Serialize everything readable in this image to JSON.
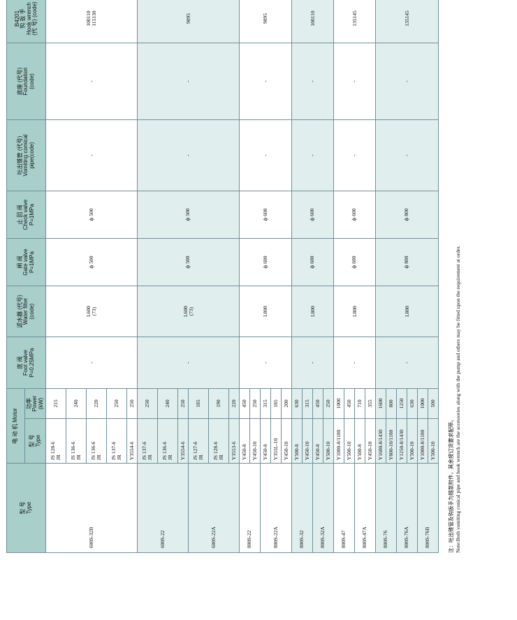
{
  "headers": {
    "model": [
      "型 号",
      "Type"
    ],
    "motor": "电 动 机 Motor",
    "motor_type": [
      "型 号",
      "Type"
    ],
    "motor_power": [
      "功率",
      "Power",
      "(kW)"
    ],
    "foot_valve": [
      "底 阀",
      "Foot valve",
      "P=0.25MPa"
    ],
    "water_filter": [
      "滤水器 (代号)",
      "Water filter",
      "(code)"
    ],
    "gate_valve": [
      "闸 阀",
      "Gate valve",
      "P=1MPa"
    ],
    "check_valve": [
      "止 回 阀",
      "Check valve",
      "P=1MPa"
    ],
    "conical_pipe": [
      "吐出锥管 (代号)",
      "Vomiting comical",
      "pipe(code)"
    ],
    "foundation": [
      "底座 (代号)",
      "Foundation",
      "(code)"
    ],
    "hook_wrench": [
      "B4201",
      "钩 扳 手",
      "Hook wrench",
      "(代 号) (code)"
    ]
  },
  "models": [
    {
      "name": "600S-32B",
      "shade": "a",
      "foot_valve": "-",
      "water_filter": [
        "L600",
        "(73)"
      ],
      "gate_valve": "ф 500",
      "check_valve": "ф 500",
      "conical_pipe": "-",
      "foundation": "-",
      "hook_wrench": [
        "100110",
        "115130"
      ],
      "motors": [
        {
          "type": [
            "JS 128-6",
            "JR"
          ],
          "power": "215",
          "rows": 1
        },
        {
          "type": [
            "JS 136-6",
            "JR"
          ],
          "power": "240",
          "rows": 1
        },
        {
          "type": [
            "JS 136-6",
            "JR"
          ],
          "power": "220",
          "rows": 1
        },
        {
          "type": [
            "JS 137-6",
            "JR"
          ],
          "power": "250",
          "rows": 1
        },
        {
          "type": [
            "Y3554-6"
          ],
          "power": "250",
          "rows": 1
        }
      ]
    },
    {
      "name": "600S-22",
      "shade": "b",
      "foot_valve": "-",
      "water_filter": [
        "L600",
        "(73)"
      ],
      "gate_valve": "ф 500",
      "check_valve": "ф 500",
      "conical_pipe": "-",
      "foundation": "-",
      "hook_wrench": [
        "9095"
      ],
      "motors": [
        {
          "type": [
            "JS 137-6",
            "JR"
          ],
          "power": "250",
          "rows": 1
        },
        {
          "type": [
            "JS 136-6",
            "JR"
          ],
          "power": "240",
          "rows": 1
        },
        {
          "type": [
            "Y3554-6"
          ],
          "power": "250",
          "rows": 1
        }
      ]
    },
    {
      "name": "600S-22A",
      "shade": "b",
      "motors": [
        {
          "type": [
            "JS 127-6",
            "JR"
          ],
          "power": "185",
          "rows": 1
        },
        {
          "type": [
            "JS 128-6",
            "JR"
          ],
          "power": "190",
          "rows": 1
        },
        {
          "type": [
            "Y3553-6"
          ],
          "power": "220",
          "rows": 1
        }
      ]
    },
    {
      "name": "800S-22",
      "shade": "a",
      "foot_valve": "-",
      "water_filter": [
        "L800"
      ],
      "gate_valve": "ф 600",
      "check_valve": "ф 600",
      "conical_pipe": "-",
      "foundation": "-",
      "hook_wrench": [
        "9095"
      ],
      "motors": [
        {
          "type": [
            "Y450-8"
          ],
          "power": "450",
          "rows": 1
        },
        {
          "type": [
            "Y450-10"
          ],
          "power": "250",
          "rows": 1
        }
      ]
    },
    {
      "name": "800S-22A",
      "shade": "a",
      "motors": [
        {
          "type": [
            "Y450-8"
          ],
          "power": "315",
          "rows": 1
        },
        {
          "type": [
            "Y355L-10"
          ],
          "power": "185",
          "rows": 1
        },
        {
          "type": [
            "Y450-10"
          ],
          "power": "200",
          "rows": 1
        }
      ]
    },
    {
      "name": "800S-32",
      "shade": "b",
      "foot_valve": "-",
      "water_filter": [
        "L800"
      ],
      "gate_valve": "ф 600",
      "check_valve": "ф 600",
      "conical_pipe": "-",
      "foundation": "-",
      "hook_wrench": [
        "100110"
      ],
      "motors": [
        {
          "type": [
            "Y500-8"
          ],
          "power": "630",
          "rows": 1
        },
        {
          "type": [
            "Y450-10"
          ],
          "power": "315",
          "rows": 1
        }
      ]
    },
    {
      "name": "800S-32A",
      "shade": "b",
      "motors": [
        {
          "type": [
            "Y450-8"
          ],
          "power": "450",
          "rows": 1
        },
        {
          "type": [
            "Y500-10"
          ],
          "power": "250",
          "rows": 1
        }
      ]
    },
    {
      "name": "800S-47",
      "shade": "a",
      "foot_valve": "-",
      "water_filter": [
        "L800"
      ],
      "gate_valve": "ф 600",
      "check_valve": "ф 600",
      "conical_pipe": "-",
      "foundation": "-",
      "hook_wrench": [
        "135145"
      ],
      "motors": [
        {
          "type": [
            "Y1000-8/1180"
          ],
          "power": "1000",
          "rows": 1
        },
        {
          "type": [
            "Y500-10"
          ],
          "power": "450",
          "rows": 1
        }
      ]
    },
    {
      "name": "800S-47A",
      "shade": "a",
      "motors": [
        {
          "type": [
            "Y500-8"
          ],
          "power": "710",
          "rows": 1
        },
        {
          "type": [
            "Y450-10"
          ],
          "power": "355",
          "rows": 1
        }
      ]
    },
    {
      "name": "800S-76",
      "shade": "b",
      "foot_valve": "-",
      "water_filter": [
        "L800"
      ],
      "gate_valve": "ф 800",
      "check_valve": "ф 800",
      "conical_pipe": "-",
      "foundation": "-",
      "hook_wrench": [
        "135145"
      ],
      "motors": [
        {
          "type": [
            "Y1600-8/1430"
          ],
          "power": "1600",
          "rows": 1
        },
        {
          "type": [
            "Y800-10/1180"
          ],
          "power": "800",
          "rows": 1
        }
      ]
    },
    {
      "name": "800S-76A",
      "shade": "b",
      "motors": [
        {
          "type": [
            "Y1250-8/1430"
          ],
          "power": "1250",
          "rows": 1
        },
        {
          "type": [
            "Y500-10"
          ],
          "power": "630",
          "rows": 1
        }
      ]
    },
    {
      "name": "800S-76B",
      "shade": "b",
      "motors": [
        {
          "type": [
            "Y1000-8/1180"
          ],
          "power": "1000",
          "rows": 1
        },
        {
          "type": [
            "Y500-10"
          ],
          "power": "500",
          "rows": 1
        }
      ]
    }
  ],
  "notes": {
    "zh": "注：吐出锥管及钩扳手为随泵附件，其余按订货要求配带。",
    "en": "Note:Both vomiting conical pipe and hook wrench are the accessories along with the pump and others may be fitted upon the requirement at order."
  }
}
